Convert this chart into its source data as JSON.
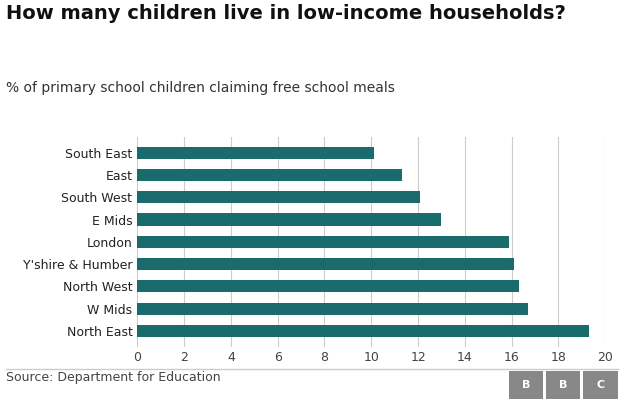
{
  "title": "How many children live in low-income households?",
  "subtitle": "% of primary school children claiming free school meals",
  "categories": [
    "South East",
    "East",
    "South West",
    "E Mids",
    "London",
    "Y'shire & Humber",
    "North West",
    "W Mids",
    "North East"
  ],
  "values": [
    10.1,
    11.3,
    12.1,
    13.0,
    15.9,
    16.1,
    16.3,
    16.7,
    19.3
  ],
  "bar_color": "#1a6b6b",
  "background_color": "#ffffff",
  "xlim": [
    0,
    20
  ],
  "xticks": [
    0,
    2,
    4,
    6,
    8,
    10,
    12,
    14,
    16,
    18,
    20
  ],
  "source_text": "Source: Department for Education",
  "source_fontsize": 9,
  "title_fontsize": 14,
  "subtitle_fontsize": 10,
  "tick_fontsize": 9,
  "label_fontsize": 9,
  "bar_height": 0.55,
  "bbc_box_color": "#888888"
}
